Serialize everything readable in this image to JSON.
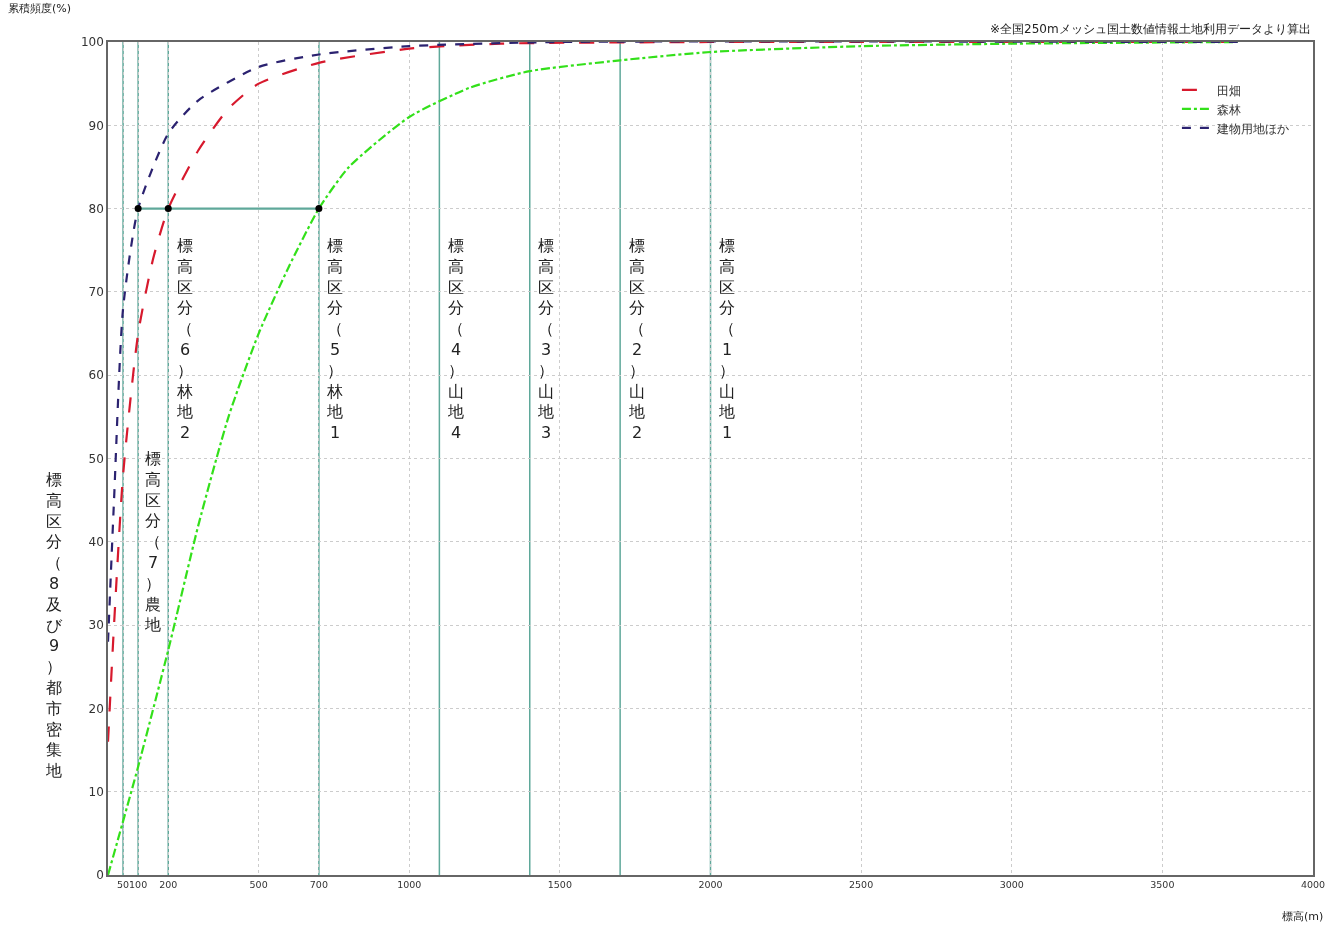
{
  "chart_data": {
    "type": "line",
    "xlabel": "標高(m)",
    "ylabel": "累積頻度(%)",
    "annotations": [
      "※全国250mメッシュ国土数値情報土地利用データより算出"
    ],
    "xlim": [
      0,
      4000
    ],
    "xticks": [
      50,
      100,
      200,
      500,
      700,
      1000,
      1500,
      2000,
      2500,
      3000,
      3500,
      4000
    ],
    "ylim": [
      0,
      100
    ],
    "yticks": [
      0,
      10,
      20,
      30,
      40,
      50,
      60,
      70,
      80,
      90,
      100
    ],
    "grid": true,
    "legend": "top right",
    "marker": "none",
    "series": [
      {
        "name": "田畑",
        "color": "#d7192d",
        "line_style": "dashed",
        "x": [
          0,
          20,
          50,
          100,
          150,
          200,
          300,
          400,
          500,
          700,
          1000,
          1300,
          2000,
          3750
        ],
        "values": [
          16,
          30,
          48,
          65,
          74,
          80,
          87,
          92,
          95,
          97.5,
          99.2,
          99.8,
          100,
          100
        ]
      },
      {
        "name": "森林",
        "color": "#33e01a",
        "line_style": "dashdot",
        "x": [
          0,
          100,
          200,
          300,
          400,
          500,
          600,
          700,
          800,
          1000,
          1200,
          1400,
          1700,
          2000,
          2500,
          3000,
          3750
        ],
        "values": [
          0,
          13,
          27,
          42,
          55,
          65,
          73,
          80,
          85,
          91,
          94.5,
          96.5,
          97.8,
          98.8,
          99.5,
          99.8,
          100
        ]
      },
      {
        "name": "建物用地ほか",
        "color": "#2b2270",
        "line_style": "dotted",
        "x": [
          0,
          20,
          50,
          100,
          200,
          300,
          500,
          700,
          1000,
          1500,
          3750
        ],
        "values": [
          28,
          45,
          68,
          80,
          89,
          93,
          97,
          98.5,
          99.5,
          100,
          100
        ]
      },
      {
        "color": "#5fa89a",
        "line_style": "solid",
        "x": [
          100,
          700
        ],
        "values": [
          80,
          80
        ]
      },
      {
        "type": "scatter",
        "color": "#000000",
        "marker": "circle",
        "x": [
          100,
          200,
          700
        ],
        "values": [
          80,
          80,
          80
        ]
      }
    ],
    "ref_lines": [
      {
        "axis": "x",
        "value": 50,
        "label": "標高区分（8及び9）都市密集地",
        "color": "#5fa89a"
      },
      {
        "axis": "x",
        "value": 100,
        "label": "標高区分（7）農地",
        "color": "#5fa89a"
      },
      {
        "axis": "x",
        "value": 200,
        "label": "標高区分（6）林地2",
        "color": "#5fa89a"
      },
      {
        "axis": "x",
        "value": 700,
        "label": "標高区分（5）林地1",
        "color": "#5fa89a"
      },
      {
        "axis": "x",
        "value": 1100,
        "label": "標高区分（4）山地4",
        "color": "#5fa89a"
      },
      {
        "axis": "x",
        "value": 1400,
        "label": "標高区分（3）山地3",
        "color": "#5fa89a"
      },
      {
        "axis": "x",
        "value": 1700,
        "label": "標高区分（2）山地2",
        "color": "#5fa89a"
      },
      {
        "axis": "x",
        "value": 2000,
        "label": "標高区分（1）山地1",
        "color": "#5fa89a"
      }
    ]
  }
}
